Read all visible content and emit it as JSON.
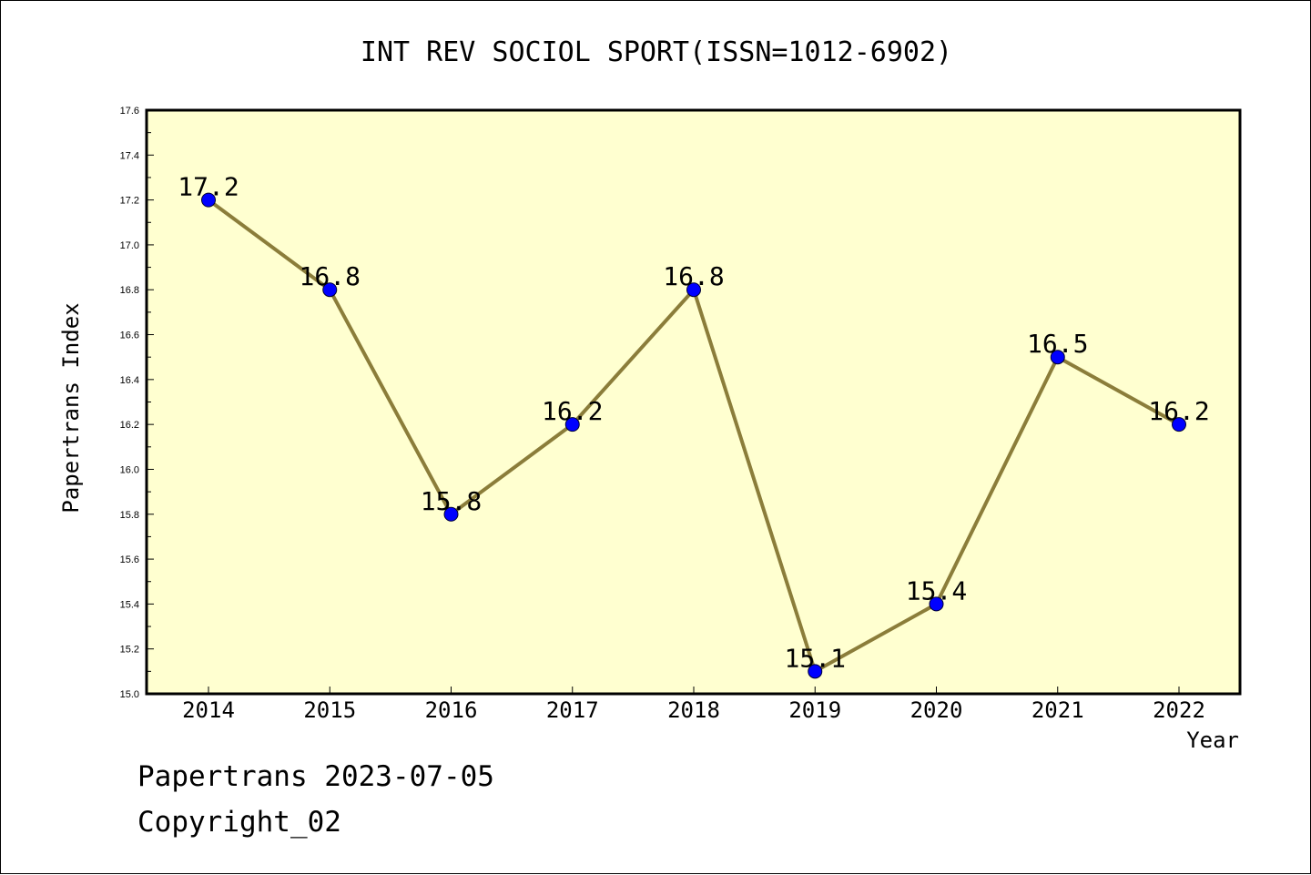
{
  "chart_data": {
    "type": "line",
    "title": "INT REV SOCIOL SPORT(ISSN=1012-6902)",
    "xlabel": "Year",
    "ylabel": "Papertrans Index",
    "categories": [
      "2014",
      "2015",
      "2016",
      "2017",
      "2018",
      "2019",
      "2020",
      "2021",
      "2022"
    ],
    "series": [
      {
        "values": [
          17.2,
          16.8,
          15.8,
          16.2,
          16.8,
          15.1,
          15.4,
          16.5,
          16.2
        ]
      }
    ],
    "data_labels": [
      "17.2",
      "16.8",
      "15.8",
      "16.2",
      "16.8",
      "15.1",
      "15.4",
      "16.5",
      "16.2"
    ],
    "ylim": [
      15.0,
      17.6
    ],
    "yticks": [
      "15.0",
      "15.2",
      "15.4",
      "15.6",
      "15.8",
      "16.0",
      "16.2",
      "16.4",
      "16.6",
      "16.8",
      "17.0",
      "17.2",
      "17.4",
      "17.6"
    ],
    "grid": false,
    "colors": {
      "plot_background": "#ffffd0",
      "line": "#8b7d3a",
      "marker": "#0000ff"
    }
  },
  "footer": {
    "line1": "Papertrans 2023-07-05",
    "line2": "Copyright_02"
  }
}
